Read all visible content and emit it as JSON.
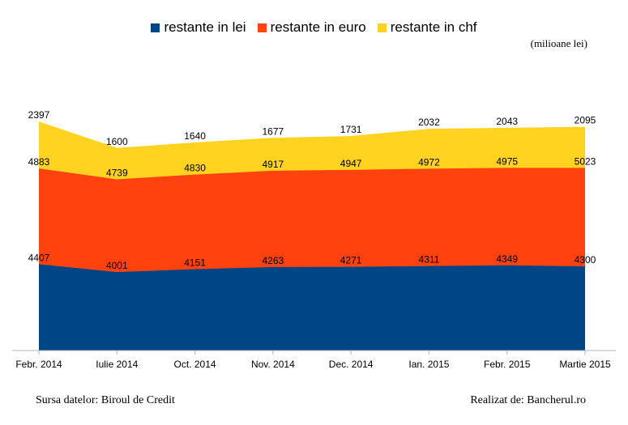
{
  "chart_data": {
    "type": "area",
    "stacked": true,
    "unit_label": "(milioane lei)",
    "categories": [
      "Febr. 2014",
      "Iulie 2014",
      "Oct. 2014",
      "Nov. 2014",
      "Dec. 2014",
      "Ian. 2015",
      "Febr. 2015",
      "Martie 2015"
    ],
    "series": [
      {
        "name": "restante in lei",
        "color": "#004586",
        "values": [
          4407,
          4001,
          4151,
          4263,
          4271,
          4311,
          4349,
          4300
        ]
      },
      {
        "name": "restante in euro",
        "color": "#FF420E",
        "values": [
          4883,
          4739,
          4830,
          4917,
          4947,
          4972,
          4975,
          5023
        ]
      },
      {
        "name": "restante in chf",
        "color": "#FFD320",
        "values": [
          2397,
          1600,
          1640,
          1677,
          1731,
          2032,
          2043,
          2095
        ]
      }
    ],
    "ylim": [
      0,
      15000
    ],
    "grid": false,
    "legend_position": "top"
  },
  "footer": {
    "source": "Sursa datelor: Biroul de Credit",
    "credit": "Realizat de: Bancherul.ro"
  }
}
